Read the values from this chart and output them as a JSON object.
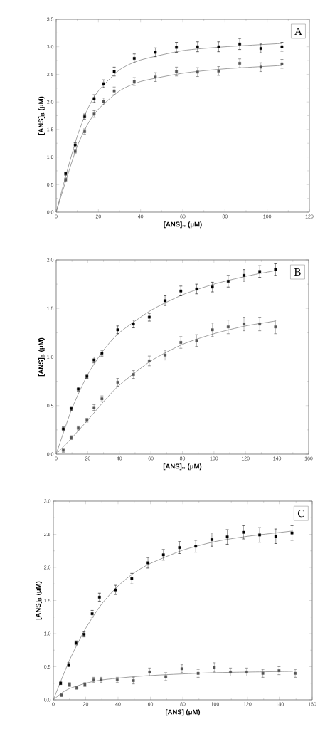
{
  "chart_data": [
    {
      "type": "scatter",
      "xlabel": "[ANS]$_{∞}$ (μM)",
      "ylabel": "[ANS]$_{B}$ (μM)",
      "marker": "square",
      "annotations": [
        "A"
      ],
      "xlim": [
        0,
        120
      ],
      "xticks": [
        0,
        20,
        40,
        60,
        80,
        100,
        120
      ],
      "ylim": [
        0,
        3.5
      ],
      "yticks": [
        {
          "value": 0,
          "label": "0.0"
        },
        0.5,
        {
          "value": 1,
          "label": "1.0"
        },
        1.5,
        {
          "value": 2,
          "label": "2.0"
        },
        2.5,
        {
          "value": 3,
          "label": "3.0"
        },
        3.5
      ],
      "series": [
        {
          "color": "#000000",
          "x": [
            4.5,
            9,
            13.5,
            18,
            22.5,
            27.5,
            37,
            47,
            57,
            67,
            77,
            87,
            97,
            107
          ],
          "values": [
            0.7,
            1.22,
            1.73,
            2.06,
            2.33,
            2.55,
            2.79,
            2.9,
            2.99,
            3.0,
            3.0,
            3.05,
            2.97,
            3.0
          ],
          "errors": [
            0.03,
            0.04,
            0.05,
            0.07,
            0.07,
            0.08,
            0.08,
            0.08,
            0.09,
            0.09,
            0.09,
            0.1,
            0.08,
            0.08
          ]
        },
        {
          "color": "#555555",
          "x": [
            4.5,
            9,
            13.5,
            18,
            22.5,
            27.5,
            37,
            47,
            57,
            67,
            77,
            87,
            97,
            107
          ],
          "values": [
            0.59,
            1.1,
            1.46,
            1.78,
            2.01,
            2.2,
            2.37,
            2.45,
            2.55,
            2.54,
            2.56,
            2.7,
            2.63,
            2.69
          ],
          "errors": [
            0.03,
            0.04,
            0.05,
            0.06,
            0.06,
            0.07,
            0.07,
            0.08,
            0.08,
            0.08,
            0.08,
            0.08,
            0.08,
            0.08
          ]
        },
        {
          "type": "line",
          "marker": "none",
          "color": "#777777",
          "x": [
            0,
            5,
            10,
            15,
            20,
            30,
            40,
            60,
            80,
            107
          ],
          "values": [
            0,
            0.72,
            1.38,
            1.88,
            2.2,
            2.58,
            2.76,
            2.93,
            3.0,
            3.06
          ]
        },
        {
          "type": "line",
          "marker": "none",
          "color": "#777777",
          "x": [
            0,
            5,
            10,
            15,
            20,
            30,
            40,
            60,
            80,
            107
          ],
          "values": [
            0,
            0.62,
            1.2,
            1.6,
            1.87,
            2.2,
            2.37,
            2.52,
            2.6,
            2.66
          ]
        }
      ]
    },
    {
      "type": "scatter",
      "xlabel": "[ANS]$_{∞}$ (μM)",
      "ylabel": "[ANS]$_{B}$ (μM)",
      "marker": "square",
      "annotations": [
        "B"
      ],
      "xlim": [
        0,
        160
      ],
      "xticks": [
        0,
        20,
        40,
        60,
        80,
        100,
        120,
        140,
        160
      ],
      "ylim": [
        0,
        2
      ],
      "yticks": [
        {
          "value": 0,
          "label": "0.0"
        },
        0.5,
        {
          "value": 1,
          "label": "1.0"
        },
        1.5,
        {
          "value": 2,
          "label": "2.0"
        }
      ],
      "series": [
        {
          "color": "#000000",
          "x": [
            4.5,
            9.5,
            14,
            19.5,
            24,
            29,
            39,
            49,
            59,
            69,
            79,
            89,
            99,
            109,
            119,
            129,
            139
          ],
          "values": [
            0.26,
            0.47,
            0.67,
            0.8,
            0.97,
            1.04,
            1.28,
            1.34,
            1.41,
            1.58,
            1.68,
            1.7,
            1.72,
            1.78,
            1.84,
            1.88,
            1.9
          ],
          "errors": [
            0.02,
            0.02,
            0.02,
            0.02,
            0.03,
            0.03,
            0.04,
            0.04,
            0.04,
            0.05,
            0.05,
            0.05,
            0.05,
            0.06,
            0.06,
            0.06,
            0.06
          ]
        },
        {
          "color": "#555555",
          "x": [
            4.5,
            9.5,
            14,
            19.5,
            24,
            29,
            39,
            49,
            59,
            69,
            79,
            89,
            99,
            109,
            119,
            129,
            139
          ],
          "values": [
            0.04,
            0.17,
            0.27,
            0.35,
            0.48,
            0.57,
            0.74,
            0.82,
            0.96,
            1.02,
            1.15,
            1.17,
            1.28,
            1.31,
            1.34,
            1.34,
            1.31
          ],
          "errors": [
            0.02,
            0.02,
            0.02,
            0.02,
            0.03,
            0.03,
            0.04,
            0.04,
            0.05,
            0.05,
            0.06,
            0.06,
            0.07,
            0.07,
            0.07,
            0.07,
            0.07
          ]
        },
        {
          "type": "line",
          "marker": "none",
          "color": "#777777",
          "x": [
            0,
            10,
            20,
            30,
            40,
            60,
            80,
            100,
            120,
            139
          ],
          "values": [
            0,
            0.47,
            0.82,
            1.07,
            1.25,
            1.48,
            1.64,
            1.75,
            1.83,
            1.89
          ]
        },
        {
          "type": "line",
          "marker": "none",
          "color": "#777777",
          "x": [
            0,
            10,
            20,
            30,
            40,
            60,
            80,
            100,
            120,
            139
          ],
          "values": [
            0,
            0.17,
            0.35,
            0.54,
            0.71,
            0.96,
            1.13,
            1.24,
            1.32,
            1.37
          ]
        }
      ]
    },
    {
      "type": "scatter",
      "xlabel": "[ANS] (μM)",
      "ylabel": "[ANS]$_{B}$ (μM)",
      "marker": "square",
      "annotations": [
        "C"
      ],
      "xlim": [
        0,
        160
      ],
      "xticks": [
        0,
        20,
        40,
        60,
        80,
        100,
        120,
        140,
        160
      ],
      "ylim": [
        0,
        3
      ],
      "yticks": [
        {
          "value": 0,
          "label": "0.0"
        },
        0.5,
        {
          "value": 1,
          "label": "1.0"
        },
        1.5,
        {
          "value": 2,
          "label": "2.0"
        },
        2.5,
        {
          "value": 3,
          "label": "3.0"
        }
      ],
      "series": [
        {
          "color": "#000000",
          "x": [
            4.5,
            9.5,
            14,
            19,
            24,
            28.5,
            38.5,
            48.5,
            58.5,
            68,
            78,
            88,
            98,
            107.5,
            117.5,
            127.5,
            137.5,
            147.5
          ],
          "values": [
            0.25,
            0.53,
            0.86,
            0.99,
            1.3,
            1.55,
            1.66,
            1.83,
            2.07,
            2.19,
            2.3,
            2.32,
            2.42,
            2.46,
            2.53,
            2.49,
            2.47,
            2.52
          ],
          "errors": [
            0.02,
            0.03,
            0.03,
            0.04,
            0.05,
            0.06,
            0.07,
            0.08,
            0.08,
            0.08,
            0.09,
            0.09,
            0.1,
            0.11,
            0.1,
            0.11,
            0.11,
            0.11
          ]
        },
        {
          "color": "#555555",
          "x": [
            5,
            10,
            14.5,
            19.5,
            25,
            29.5,
            39.5,
            49.5,
            59.5,
            69.5,
            79.5,
            89.5,
            99.5,
            109.5,
            119.5,
            129.5,
            139.5,
            149.5
          ],
          "values": [
            0.07,
            0.23,
            0.18,
            0.23,
            0.3,
            0.3,
            0.3,
            0.29,
            0.42,
            0.35,
            0.47,
            0.4,
            0.49,
            0.42,
            0.42,
            0.4,
            0.44,
            0.4
          ],
          "errors": [
            0.02,
            0.03,
            0.02,
            0.03,
            0.04,
            0.04,
            0.04,
            0.05,
            0.06,
            0.06,
            0.06,
            0.06,
            0.07,
            0.06,
            0.06,
            0.06,
            0.06,
            0.06
          ]
        },
        {
          "type": "line",
          "marker": "none",
          "color": "#777777",
          "x": [
            0,
            10,
            20,
            30,
            40,
            50,
            60,
            80,
            100,
            120,
            148
          ],
          "values": [
            0,
            0.6,
            1.08,
            1.45,
            1.72,
            1.92,
            2.06,
            2.26,
            2.39,
            2.47,
            2.55
          ]
        },
        {
          "type": "line",
          "marker": "none",
          "color": "#777777",
          "x": [
            0,
            5,
            10,
            20,
            30,
            50,
            70,
            100,
            148
          ],
          "values": [
            0,
            0.1,
            0.17,
            0.25,
            0.3,
            0.35,
            0.38,
            0.41,
            0.43
          ]
        }
      ]
    }
  ]
}
